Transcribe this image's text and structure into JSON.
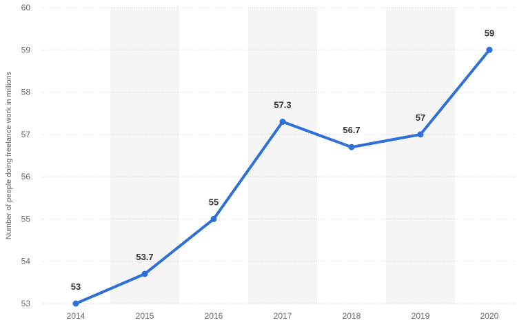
{
  "chart_data": {
    "type": "line",
    "x": [
      "2014",
      "2015",
      "2016",
      "2017",
      "2018",
      "2019",
      "2020"
    ],
    "series": [
      {
        "name": "",
        "values": [
          53,
          53.7,
          55,
          57.3,
          56.7,
          57,
          59
        ]
      }
    ],
    "data_labels": [
      "53",
      "53.7",
      "55",
      "57.3",
      "56.7",
      "57",
      "59"
    ],
    "title": "",
    "xlabel": "",
    "ylabel": "Number of people doing freelance work in millions",
    "ylim": [
      53,
      60
    ],
    "yticks": [
      "53",
      "54",
      "55",
      "56",
      "57",
      "58",
      "59",
      "60"
    ],
    "grid": true,
    "legend": "none",
    "colors": {
      "line": "#2f6fd6",
      "band": "#f5f5f5",
      "grid": "#cccccc",
      "tick_text": "#666666",
      "label_text": "#333333"
    }
  }
}
